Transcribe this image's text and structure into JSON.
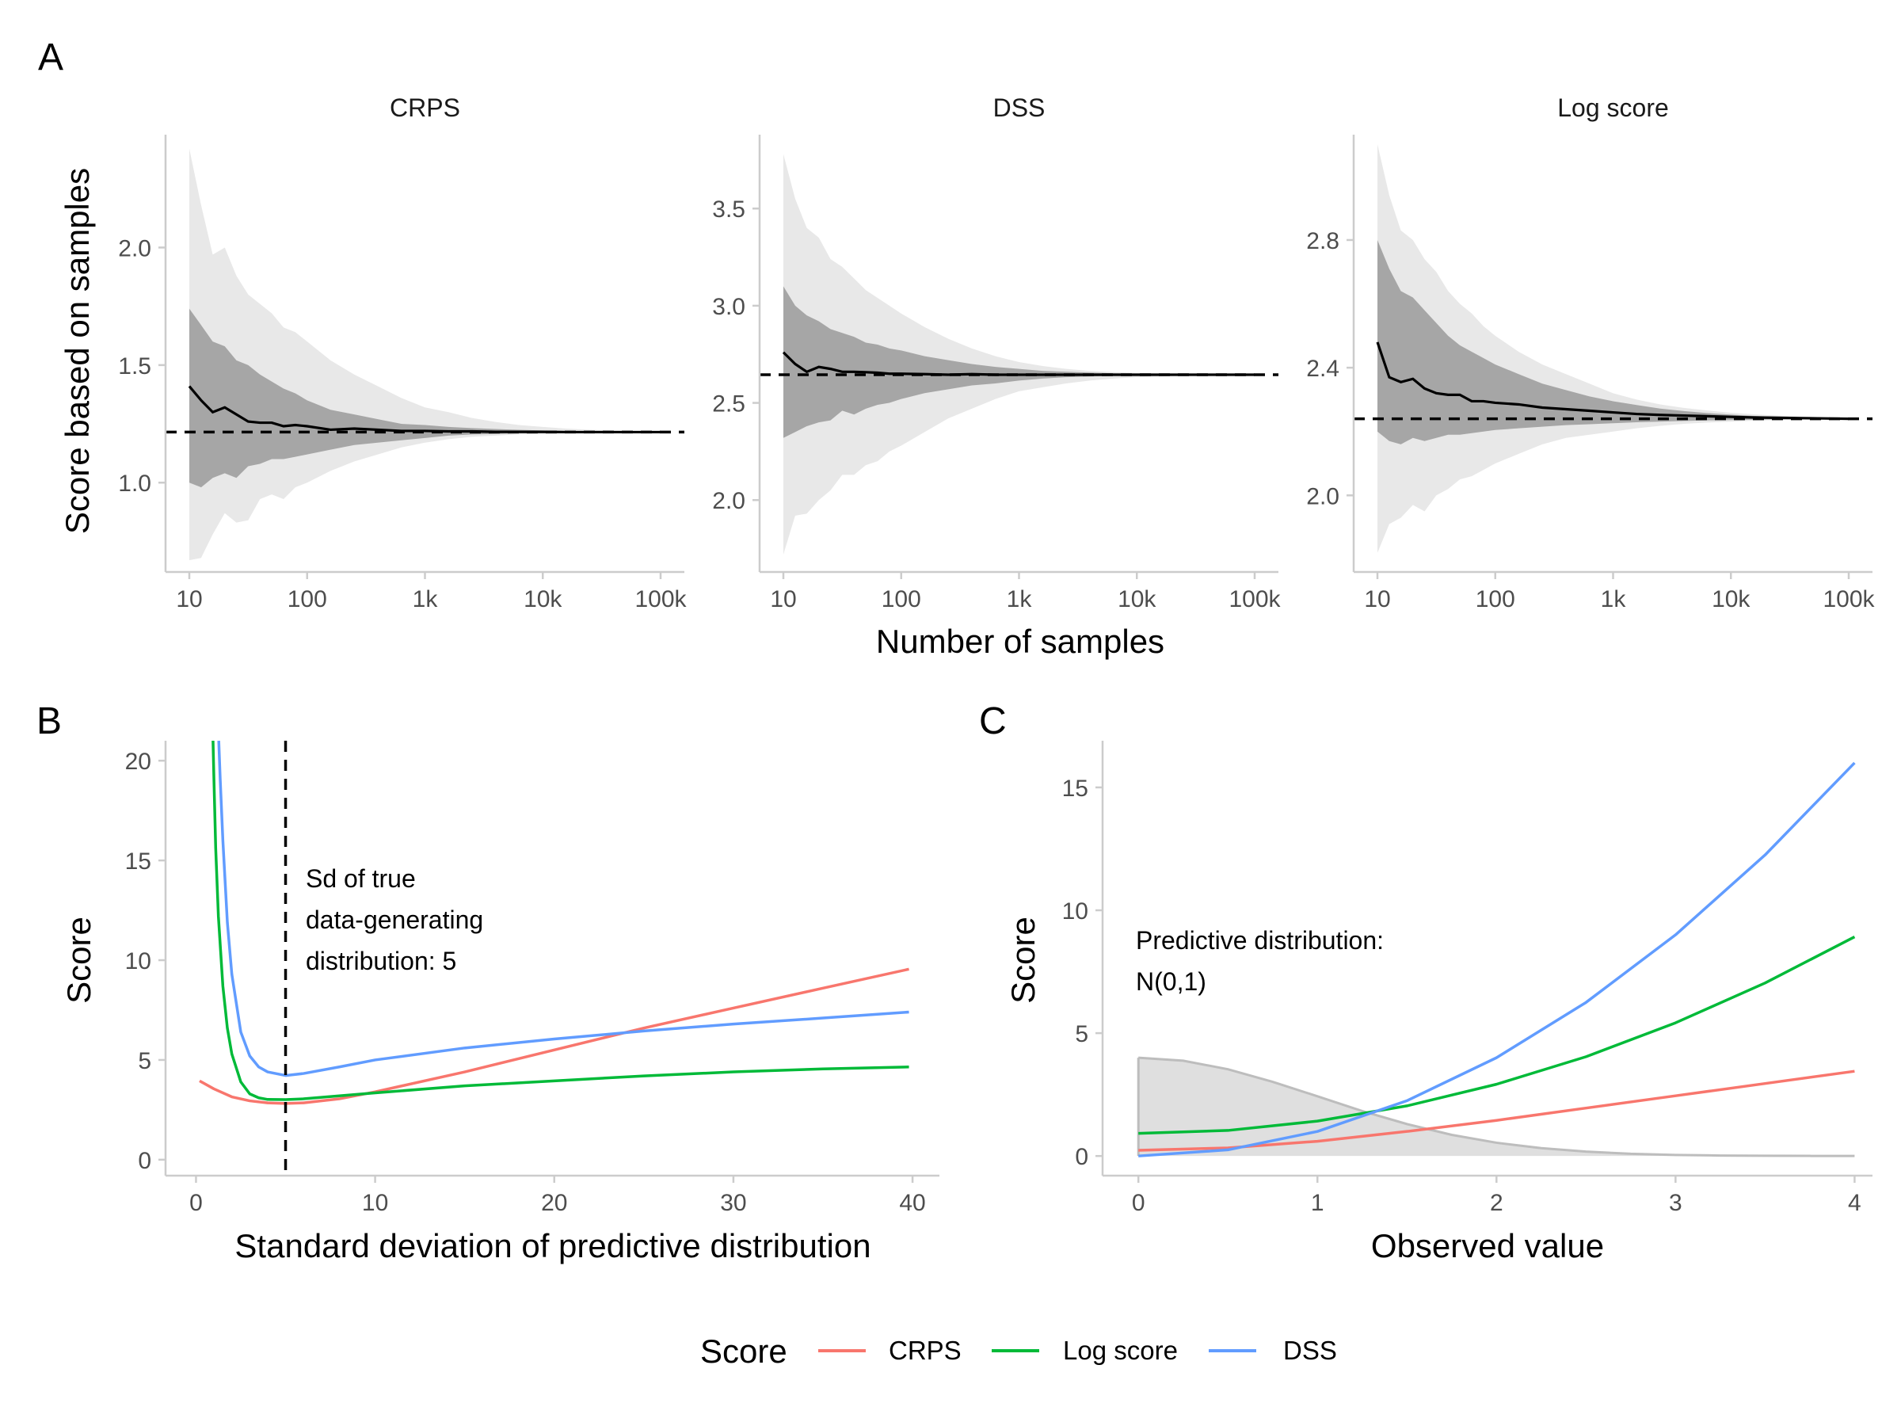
{
  "panel_labels": {
    "a": "A",
    "b": "B",
    "c": "C"
  },
  "facet_titles": [
    "CRPS",
    "DSS",
    "Log score"
  ],
  "axis_titles": {
    "a_y": "Score based on samples",
    "a_x": "Number of samples",
    "b_y": "Score",
    "b_x": "Standard deviation of predictive distribution",
    "c_y": "Score",
    "c_x": "Observed value"
  },
  "annotations": {
    "b": [
      "Sd of true",
      "data-generating",
      "distribution: 5"
    ],
    "c": [
      "Predictive distribution:",
      "N(0,1)"
    ]
  },
  "legend": {
    "title": "Score",
    "items": [
      {
        "label": "CRPS",
        "color": "#F8766D"
      },
      {
        "label": "Log score",
        "color": "#00BA38"
      },
      {
        "label": "DSS",
        "color": "#619CFF"
      }
    ]
  },
  "colors": {
    "crps": "#F8766D",
    "log": "#00BA38",
    "dss": "#619CFF",
    "band_outer": "#E8E8E8",
    "band_inner": "#A6A6A6",
    "density_fill": "#DCDCDC",
    "density_line": "#BDBDBD",
    "axis": "#CCCCCC",
    "tick_text": "#4D4D4D"
  },
  "chart_data": [
    {
      "type": "area",
      "panel": "A",
      "facet": "CRPS",
      "x_log10": true,
      "x_ticks": [
        "10",
        "100",
        "1k",
        "10k",
        "100k"
      ],
      "x_tick_values": [
        10,
        100,
        1000,
        10000,
        100000
      ],
      "ylim": [
        0.62,
        2.48
      ],
      "y_ticks": [
        1.0,
        1.5,
        2.0
      ],
      "y_tick_labels": [
        "1.0",
        "1.5",
        "2.0"
      ],
      "true_value": 1.215,
      "n": [
        10,
        12.6,
        15.8,
        20,
        25.1,
        31.6,
        39.8,
        50.1,
        63.1,
        79.4,
        100,
        158,
        251,
        398,
        631,
        1000,
        1585,
        2512,
        3981,
        6310,
        10000,
        15849,
        25119,
        39811,
        63096,
        100000
      ],
      "mean": [
        1.41,
        1.35,
        1.3,
        1.32,
        1.29,
        1.26,
        1.255,
        1.255,
        1.24,
        1.245,
        1.24,
        1.225,
        1.23,
        1.225,
        1.22,
        1.22,
        1.218,
        1.218,
        1.216,
        1.216,
        1.216,
        1.215,
        1.215,
        1.215,
        1.215,
        1.215
      ],
      "inner_low": [
        1.0,
        0.98,
        1.02,
        1.04,
        1.02,
        1.07,
        1.08,
        1.1,
        1.1,
        1.11,
        1.12,
        1.14,
        1.16,
        1.17,
        1.18,
        1.19,
        1.2,
        1.205,
        1.207,
        1.21,
        1.21,
        1.212,
        1.213,
        1.214,
        1.214,
        1.215
      ],
      "inner_high": [
        1.74,
        1.67,
        1.6,
        1.58,
        1.52,
        1.5,
        1.46,
        1.43,
        1.4,
        1.38,
        1.35,
        1.31,
        1.29,
        1.27,
        1.25,
        1.245,
        1.237,
        1.232,
        1.228,
        1.225,
        1.222,
        1.22,
        1.218,
        1.217,
        1.216,
        1.215
      ],
      "outer_low": [
        0.67,
        0.68,
        0.78,
        0.87,
        0.83,
        0.84,
        0.93,
        0.95,
        0.93,
        0.98,
        1.0,
        1.05,
        1.09,
        1.12,
        1.15,
        1.17,
        1.185,
        1.195,
        1.2,
        1.205,
        1.208,
        1.21,
        1.212,
        1.213,
        1.214,
        1.215
      ],
      "outer_high": [
        2.42,
        2.18,
        1.97,
        2.0,
        1.88,
        1.8,
        1.76,
        1.72,
        1.66,
        1.64,
        1.6,
        1.52,
        1.46,
        1.41,
        1.36,
        1.32,
        1.3,
        1.275,
        1.258,
        1.245,
        1.237,
        1.23,
        1.225,
        1.222,
        1.219,
        1.217
      ]
    },
    {
      "type": "area",
      "panel": "A",
      "facet": "DSS",
      "x_log10": true,
      "x_ticks": [
        "10",
        "100",
        "1k",
        "10k",
        "100k"
      ],
      "x_tick_values": [
        10,
        100,
        1000,
        10000,
        100000
      ],
      "ylim": [
        1.63,
        3.88
      ],
      "y_ticks": [
        2.0,
        2.5,
        3.0,
        3.5
      ],
      "y_tick_labels": [
        "2.0",
        "2.5",
        "3.0",
        "3.5"
      ],
      "true_value": 2.645,
      "n": [
        10,
        12.6,
        15.8,
        20,
        25.1,
        31.6,
        39.8,
        50.1,
        63.1,
        79.4,
        100,
        158,
        251,
        398,
        631,
        1000,
        1585,
        2512,
        3981,
        6310,
        10000,
        15849,
        25119,
        39811,
        63096,
        100000
      ],
      "mean": [
        2.76,
        2.7,
        2.66,
        2.685,
        2.675,
        2.66,
        2.66,
        2.658,
        2.655,
        2.65,
        2.65,
        2.648,
        2.645,
        2.648,
        2.645,
        2.645,
        2.645,
        2.645,
        2.645,
        2.645,
        2.645,
        2.645,
        2.645,
        2.645,
        2.645,
        2.645
      ],
      "inner_low": [
        2.32,
        2.35,
        2.38,
        2.4,
        2.41,
        2.46,
        2.44,
        2.47,
        2.49,
        2.5,
        2.52,
        2.55,
        2.57,
        2.59,
        2.6,
        2.615,
        2.625,
        2.632,
        2.636,
        2.639,
        2.641,
        2.642,
        2.643,
        2.644,
        2.644,
        2.645
      ],
      "inner_high": [
        3.1,
        3.0,
        2.95,
        2.92,
        2.88,
        2.86,
        2.84,
        2.81,
        2.8,
        2.78,
        2.77,
        2.74,
        2.72,
        2.7,
        2.685,
        2.675,
        2.665,
        2.66,
        2.656,
        2.652,
        2.65,
        2.649,
        2.648,
        2.647,
        2.646,
        2.645
      ],
      "outer_low": [
        1.72,
        1.92,
        1.93,
        2.0,
        2.05,
        2.13,
        2.13,
        2.18,
        2.2,
        2.25,
        2.28,
        2.35,
        2.42,
        2.47,
        2.52,
        2.56,
        2.58,
        2.6,
        2.615,
        2.625,
        2.632,
        2.636,
        2.64,
        2.642,
        2.643,
        2.644
      ],
      "outer_high": [
        3.78,
        3.55,
        3.4,
        3.35,
        3.24,
        3.2,
        3.14,
        3.08,
        3.04,
        3.0,
        2.96,
        2.89,
        2.83,
        2.78,
        2.74,
        2.71,
        2.69,
        2.675,
        2.665,
        2.658,
        2.654,
        2.651,
        2.649,
        2.648,
        2.647,
        2.646
      ]
    },
    {
      "type": "area",
      "panel": "A",
      "facet": "Log score",
      "x_log10": true,
      "x_ticks": [
        "10",
        "100",
        "1k",
        "10k",
        "100k"
      ],
      "x_tick_values": [
        10,
        100,
        1000,
        10000,
        100000
      ],
      "ylim": [
        1.76,
        3.13
      ],
      "y_ticks": [
        2.0,
        2.4,
        2.8
      ],
      "y_tick_labels": [
        "2.0",
        "2.4",
        "2.8"
      ],
      "true_value": 2.24,
      "n": [
        10,
        12.6,
        15.8,
        20,
        25.1,
        31.6,
        39.8,
        50.1,
        63.1,
        79.4,
        100,
        158,
        251,
        398,
        631,
        1000,
        1585,
        2512,
        3981,
        6310,
        10000,
        15849,
        25119,
        39811,
        63096,
        100000
      ],
      "mean": [
        2.48,
        2.37,
        2.355,
        2.365,
        2.335,
        2.32,
        2.315,
        2.315,
        2.295,
        2.295,
        2.29,
        2.285,
        2.275,
        2.27,
        2.265,
        2.26,
        2.255,
        2.252,
        2.25,
        2.248,
        2.246,
        2.244,
        2.243,
        2.242,
        2.241,
        2.24
      ],
      "inner_low": [
        2.2,
        2.17,
        2.16,
        2.18,
        2.17,
        2.18,
        2.19,
        2.19,
        2.195,
        2.2,
        2.205,
        2.21,
        2.215,
        2.22,
        2.223,
        2.226,
        2.229,
        2.231,
        2.233,
        2.235,
        2.236,
        2.237,
        2.238,
        2.239,
        2.24,
        2.24
      ],
      "inner_high": [
        2.8,
        2.71,
        2.64,
        2.62,
        2.58,
        2.54,
        2.5,
        2.47,
        2.45,
        2.43,
        2.41,
        2.38,
        2.35,
        2.33,
        2.31,
        2.295,
        2.283,
        2.272,
        2.264,
        2.258,
        2.253,
        2.249,
        2.246,
        2.244,
        2.242,
        2.24
      ],
      "outer_low": [
        1.82,
        1.91,
        1.93,
        1.97,
        1.95,
        2.0,
        2.02,
        2.05,
        2.06,
        2.08,
        2.1,
        2.13,
        2.16,
        2.18,
        2.19,
        2.2,
        2.21,
        2.218,
        2.224,
        2.228,
        2.231,
        2.234,
        2.236,
        2.238,
        2.239,
        2.24
      ],
      "outer_high": [
        3.1,
        2.94,
        2.83,
        2.8,
        2.74,
        2.7,
        2.64,
        2.6,
        2.57,
        2.53,
        2.5,
        2.45,
        2.41,
        2.38,
        2.35,
        2.32,
        2.3,
        2.285,
        2.274,
        2.266,
        2.259,
        2.254,
        2.25,
        2.247,
        2.244,
        2.242
      ]
    },
    {
      "type": "line",
      "panel": "B",
      "xlim": [
        -1.7,
        41.5
      ],
      "ylim": [
        -0.8,
        21.0
      ],
      "x_ticks": [
        0,
        10,
        20,
        30,
        40
      ],
      "y_ticks": [
        0,
        5,
        10,
        15,
        20
      ],
      "vline": 5,
      "series": [
        {
          "name": "CRPS",
          "color": "#F8766D",
          "x": [
            0.2,
            1,
            2,
            3,
            4,
            5,
            6,
            8,
            10,
            15,
            20,
            25,
            30,
            35,
            39.8
          ],
          "y": [
            3.95,
            3.55,
            3.15,
            2.95,
            2.85,
            2.82,
            2.85,
            3.05,
            3.4,
            4.4,
            5.5,
            6.6,
            7.6,
            8.6,
            9.55
          ]
        },
        {
          "name": "Log score",
          "color": "#00BA38",
          "x": [
            0.95,
            1.0,
            1.1,
            1.25,
            1.5,
            1.75,
            2.0,
            2.5,
            3,
            3.5,
            4,
            5,
            6,
            8,
            10,
            15,
            20,
            25,
            30,
            35,
            39.8
          ],
          "y": [
            21.0,
            19.1,
            15.6,
            12.2,
            8.7,
            6.6,
            5.3,
            3.9,
            3.3,
            3.1,
            3.02,
            3.01,
            3.05,
            3.2,
            3.35,
            3.7,
            3.95,
            4.2,
            4.4,
            4.55,
            4.65
          ]
        },
        {
          "name": "DSS",
          "color": "#619CFF",
          "x": [
            1.27,
            1.35,
            1.5,
            1.75,
            2.0,
            2.5,
            3,
            3.5,
            4,
            5,
            6,
            8,
            10,
            15,
            20,
            25,
            30,
            35,
            39.8
          ],
          "y": [
            21.0,
            19.1,
            16.0,
            11.9,
            9.3,
            6.4,
            5.2,
            4.65,
            4.4,
            4.22,
            4.32,
            4.65,
            5.0,
            5.6,
            6.05,
            6.45,
            6.8,
            7.1,
            7.4
          ]
        }
      ]
    },
    {
      "type": "line",
      "panel": "C",
      "xlim": [
        -0.2,
        4.1
      ],
      "ylim": [
        -0.8,
        16.9
      ],
      "x_ticks": [
        0,
        1,
        2,
        3,
        4
      ],
      "y_ticks": [
        0,
        5,
        10,
        15
      ],
      "density_area": {
        "x": [
          0,
          0.25,
          0.5,
          0.75,
          1,
          1.25,
          1.5,
          1.75,
          2,
          2.25,
          2.5,
          2.75,
          3,
          3.25,
          3.5,
          3.75,
          4
        ],
        "y": [
          4.0,
          3.88,
          3.53,
          3.02,
          2.43,
          1.83,
          1.3,
          0.86,
          0.54,
          0.32,
          0.18,
          0.09,
          0.044,
          0.02,
          0.009,
          0.004,
          0.001
        ]
      },
      "series": [
        {
          "name": "CRPS",
          "color": "#F8766D",
          "x": [
            0,
            0.5,
            1,
            1.5,
            2,
            2.5,
            3,
            3.5,
            4
          ],
          "y": [
            0.23,
            0.33,
            0.6,
            1.0,
            1.45,
            1.95,
            2.45,
            2.95,
            3.45
          ]
        },
        {
          "name": "Log score",
          "color": "#00BA38",
          "x": [
            0,
            0.5,
            1,
            1.5,
            2,
            2.5,
            3,
            3.5,
            4
          ],
          "y": [
            0.92,
            1.04,
            1.42,
            2.04,
            2.92,
            4.04,
            5.42,
            7.04,
            8.92
          ]
        },
        {
          "name": "DSS",
          "color": "#619CFF",
          "x": [
            0,
            0.5,
            1,
            1.5,
            2,
            2.5,
            3,
            3.5,
            4
          ],
          "y": [
            0,
            0.25,
            1.0,
            2.25,
            4.0,
            6.25,
            9.0,
            12.25,
            16.0
          ]
        }
      ]
    }
  ]
}
